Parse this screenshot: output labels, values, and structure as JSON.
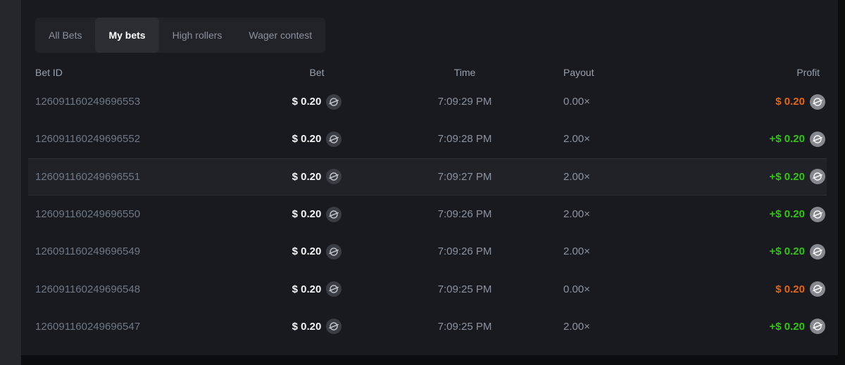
{
  "tabs": [
    {
      "label": "All Bets",
      "active": false
    },
    {
      "label": "My bets",
      "active": true
    },
    {
      "label": "High rollers",
      "active": false
    },
    {
      "label": "Wager contest",
      "active": false
    }
  ],
  "table": {
    "headers": [
      "Bet ID",
      "Bet",
      "Time",
      "Payout",
      "Profit"
    ],
    "rows": [
      {
        "bet_id": "126091160249696553",
        "bet": "$ 0.20",
        "time": "7:09:29 PM",
        "payout": "0.00×",
        "profit": "$ 0.20",
        "result": "loss",
        "highlighted": false
      },
      {
        "bet_id": "126091160249696552",
        "bet": "$ 0.20",
        "time": "7:09:28 PM",
        "payout": "2.00×",
        "profit": "+$ 0.20",
        "result": "win",
        "highlighted": false
      },
      {
        "bet_id": "126091160249696551",
        "bet": "$ 0.20",
        "time": "7:09:27 PM",
        "payout": "2.00×",
        "profit": "+$ 0.20",
        "result": "win",
        "highlighted": true
      },
      {
        "bet_id": "126091160249696550",
        "bet": "$ 0.20",
        "time": "7:09:26 PM",
        "payout": "2.00×",
        "profit": "+$ 0.20",
        "result": "win",
        "highlighted": false
      },
      {
        "bet_id": "126091160249696549",
        "bet": "$ 0.20",
        "time": "7:09:26 PM",
        "payout": "2.00×",
        "profit": "+$ 0.20",
        "result": "win",
        "highlighted": false
      },
      {
        "bet_id": "126091160249696548",
        "bet": "$ 0.20",
        "time": "7:09:25 PM",
        "payout": "0.00×",
        "profit": "$ 0.20",
        "result": "loss",
        "highlighted": false
      },
      {
        "bet_id": "126091160249696547",
        "bet": "$ 0.20",
        "time": "7:09:25 PM",
        "payout": "2.00×",
        "profit": "+$ 0.20",
        "result": "win",
        "highlighted": false
      }
    ]
  },
  "icons": {
    "currency": "stellar-coin-icon"
  },
  "colors": {
    "profit_win": "#2fc70d",
    "profit_loss": "#e8650f",
    "panel_bg": "#191a1f",
    "highlight_bg": "#212227"
  }
}
